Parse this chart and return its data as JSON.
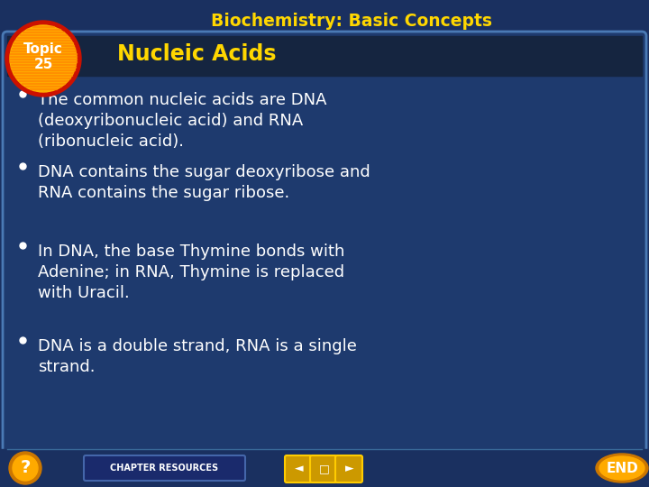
{
  "title": "Biochemistry: Basic Concepts",
  "title_color": "#FFD700",
  "title_fontsize": 13.5,
  "subtitle": "Nucleic Acids",
  "subtitle_color": "#FFD700",
  "subtitle_fontsize": 17,
  "topic_label": "Topic\n25",
  "topic_text_color": "#FFFFFF",
  "topic_outer_color": "#CC1100",
  "topic_inner_color": "#FFB300",
  "topic_stripe_color": "#FF8800",
  "bg_color": "#1a3060",
  "card_bg": "#1e3a6e",
  "card_border": "#4a7ab5",
  "header_bg": "#152540",
  "bullet_color": "#FFFFFF",
  "bullet_fontsize": 13.0,
  "bullets": [
    "The common nucleic acids are DNA\n(deoxyribonucleic acid) and RNA\n(ribonucleic acid).",
    "DNA contains the sugar deoxyribose and\nRNA contains the sugar ribose.",
    "In DNA, the base Thymine bonds with\nAdenine; in RNA, Thymine is replaced\nwith Uracil.",
    "DNA is a double strand, RNA is a single\nstrand."
  ],
  "footer_text": "CHAPTER RESOURCES",
  "footer_text_color": "#FFFFFF",
  "footer_btn_color": "#1a2a6c",
  "footer_btn_border": "#4466aa",
  "nav_btn_color": "#CC9900",
  "nav_btn_border": "#FFCC00",
  "end_label": "END",
  "question_mark": "?",
  "q_outer": "#CC7700",
  "q_inner": "#FFAA00",
  "end_outer": "#CC7700",
  "end_inner": "#FFAA00"
}
